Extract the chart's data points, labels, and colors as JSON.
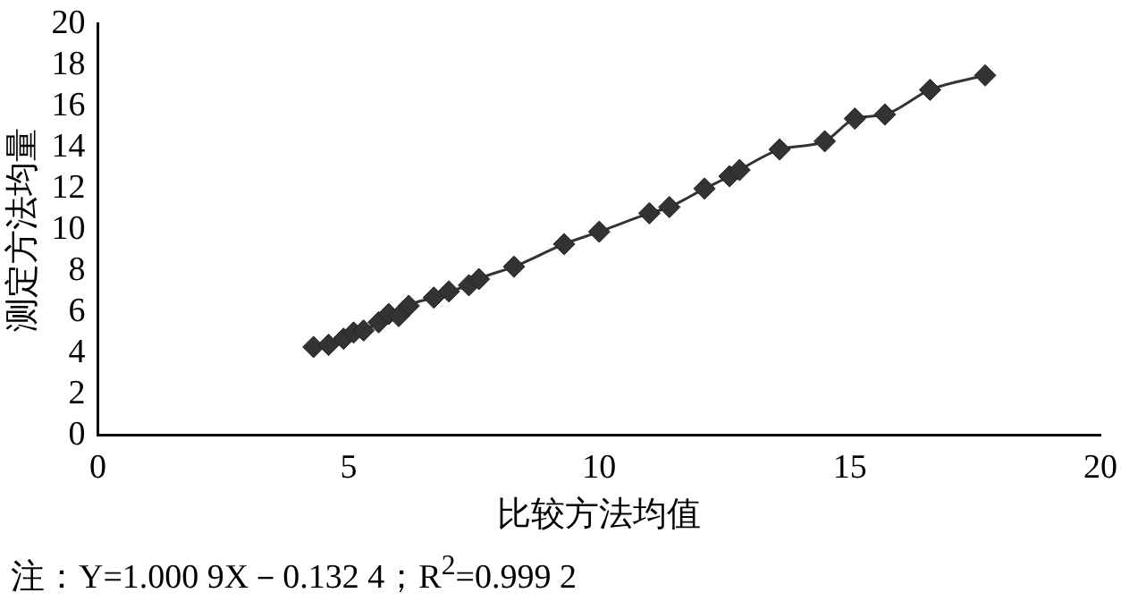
{
  "chart_data": {
    "type": "line",
    "xlabel": "比较方法均值",
    "ylabel": "测定方法均量",
    "annotations": [
      "注：Y=1.000 9X－0.132 4；R$^{2}$=0.999 2"
    ],
    "x": [
      4.3,
      4.6,
      4.9,
      5.1,
      5.3,
      5.6,
      5.8,
      6.0,
      6.2,
      6.7,
      7.0,
      7.4,
      7.6,
      8.3,
      9.3,
      10.0,
      11.0,
      11.4,
      12.1,
      12.6,
      12.8,
      13.6,
      14.5,
      15.1,
      15.7,
      16.6,
      17.7
    ],
    "series": [
      {
        "color": "#333333",
        "values": [
          4.3,
          4.4,
          4.7,
          5.0,
          5.1,
          5.5,
          5.9,
          5.8,
          6.3,
          6.7,
          7.0,
          7.3,
          7.6,
          8.2,
          9.3,
          9.9,
          10.8,
          11.1,
          12.0,
          12.6,
          12.9,
          13.9,
          14.3,
          15.4,
          15.6,
          16.8,
          17.5
        ]
      }
    ],
    "marker": "diamond",
    "xlim": [
      0,
      20
    ],
    "xticks": [
      0,
      5,
      10,
      15,
      20
    ],
    "ylim": [
      0,
      20
    ],
    "yticks": [
      0,
      2,
      4,
      6,
      8,
      10,
      12,
      14,
      16,
      18,
      20
    ],
    "grid": false,
    "legend": false
  }
}
